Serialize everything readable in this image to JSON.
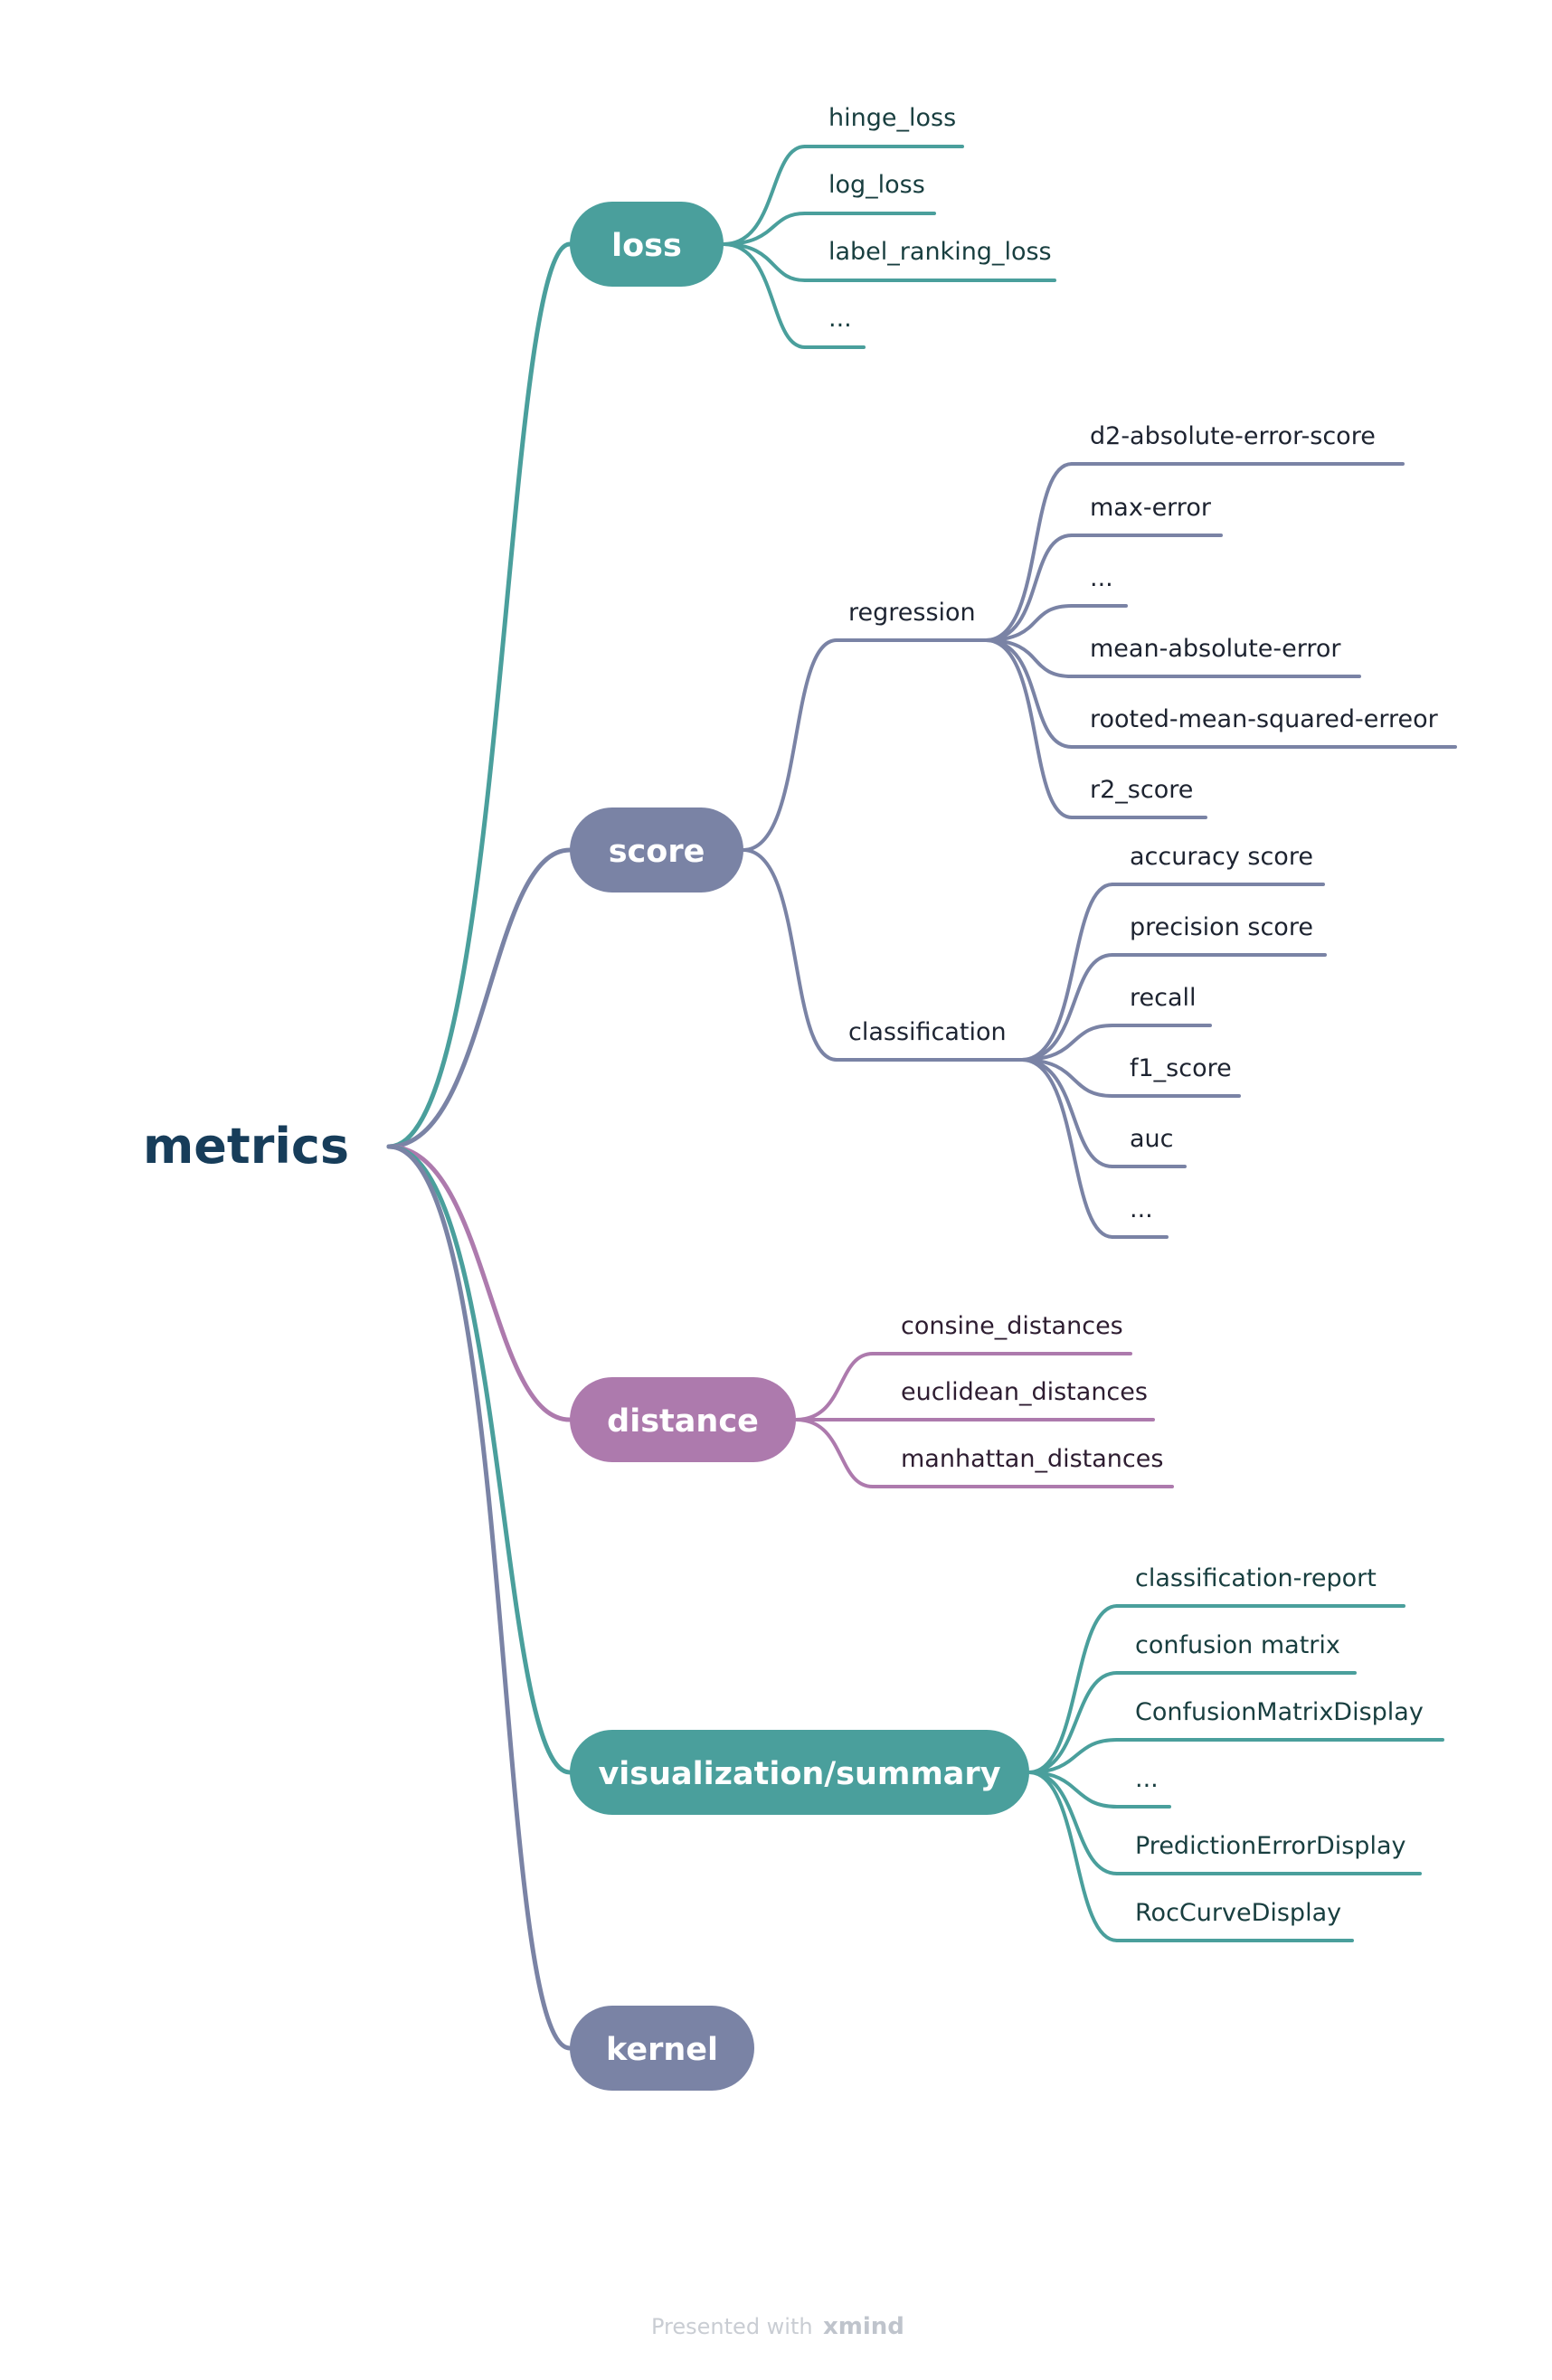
{
  "colors": {
    "teal": "#4a9f9c",
    "slate": "#7a83a5",
    "purple": "#ad7aad",
    "root_text": "#173d5a"
  },
  "root": {
    "label": "metrics"
  },
  "topics": {
    "loss": {
      "label": "loss",
      "children": [
        "hinge_loss",
        "log_loss",
        "label_ranking_loss",
        "..."
      ]
    },
    "score": {
      "label": "score",
      "regression": {
        "label": "regression",
        "children": [
          "d2-absolute-error-score",
          "max-error",
          "...",
          "mean-absolute-error",
          "rooted-mean-squared-erreor",
          "r2_score"
        ]
      },
      "classification": {
        "label": "classification",
        "children": [
          "accuracy score",
          "precision score",
          "recall",
          "f1_score",
          "auc",
          "..."
        ]
      }
    },
    "distance": {
      "label": "distance",
      "children": [
        "consine_distances",
        "euclidean_distances",
        "manhattan_distances"
      ]
    },
    "visualization": {
      "label": "visualization/summary",
      "children": [
        "classification-report",
        "confusion matrix",
        "ConfusionMatrixDisplay",
        "...",
        "PredictionErrorDisplay",
        "RocCurveDisplay"
      ]
    },
    "kernel": {
      "label": "kernel"
    }
  },
  "footer": {
    "prefix": "Presented with",
    "brand": "xmind"
  }
}
